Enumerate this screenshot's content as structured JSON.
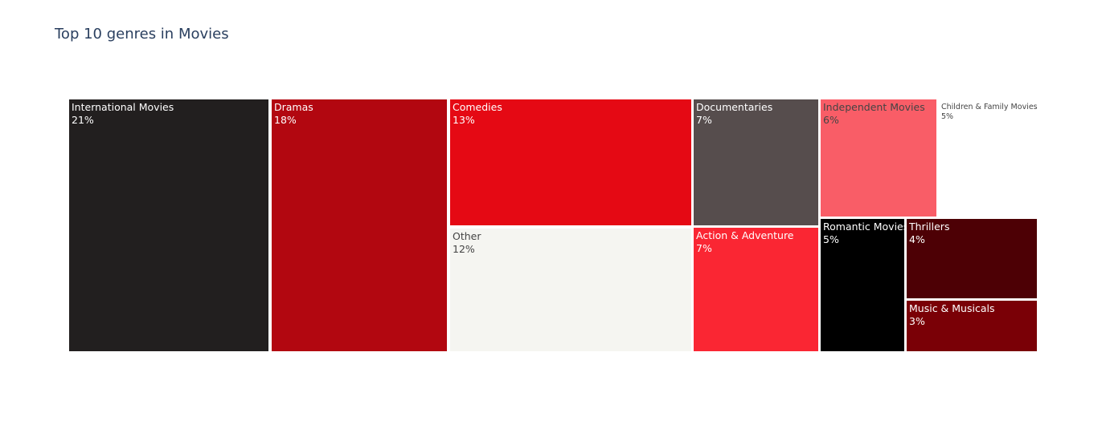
{
  "chart_data": {
    "type": "treemap",
    "title": "Top 10 genres in Movies",
    "items": [
      {
        "label": "International Movies",
        "percent_text": "21%",
        "percent": 21,
        "color": "#221f1f",
        "text_color": "#ffffff"
      },
      {
        "label": "Dramas",
        "percent_text": "18%",
        "percent": 18,
        "color": "#b20710",
        "text_color": "#ffffff"
      },
      {
        "label": "Comedies",
        "percent_text": "13%",
        "percent": 13,
        "color": "#e50914",
        "text_color": "#ffffff"
      },
      {
        "label": "Other",
        "percent_text": "12%",
        "percent": 12,
        "color": "#f5f5f1",
        "text_color": "#444444"
      },
      {
        "label": "Documentaries",
        "percent_text": "7%",
        "percent": 7,
        "color": "#564d4d",
        "text_color": "#ffffff"
      },
      {
        "label": "Action & Adventure",
        "percent_text": "7%",
        "percent": 7,
        "color": "#fa2633",
        "text_color": "#ffffff"
      },
      {
        "label": "Independent Movies",
        "percent_text": "6%",
        "percent": 6,
        "color": "#f95d67",
        "text_color": "#444444"
      },
      {
        "label": "Children & Family Movies",
        "percent_text": "5%",
        "percent": 5,
        "color": "#ffffff",
        "text_color": "#444444"
      },
      {
        "label": "Romantic Movies",
        "percent_text": "5%",
        "percent": 5,
        "color": "#000000",
        "text_color": "#ffffff"
      },
      {
        "label": "Thrillers",
        "percent_text": "4%",
        "percent": 4,
        "color": "#4d0005",
        "text_color": "#ffffff"
      },
      {
        "label": "Music & Musicals",
        "percent_text": "3%",
        "percent": 3,
        "color": "#7a0006",
        "text_color": "#ffffff"
      }
    ]
  }
}
